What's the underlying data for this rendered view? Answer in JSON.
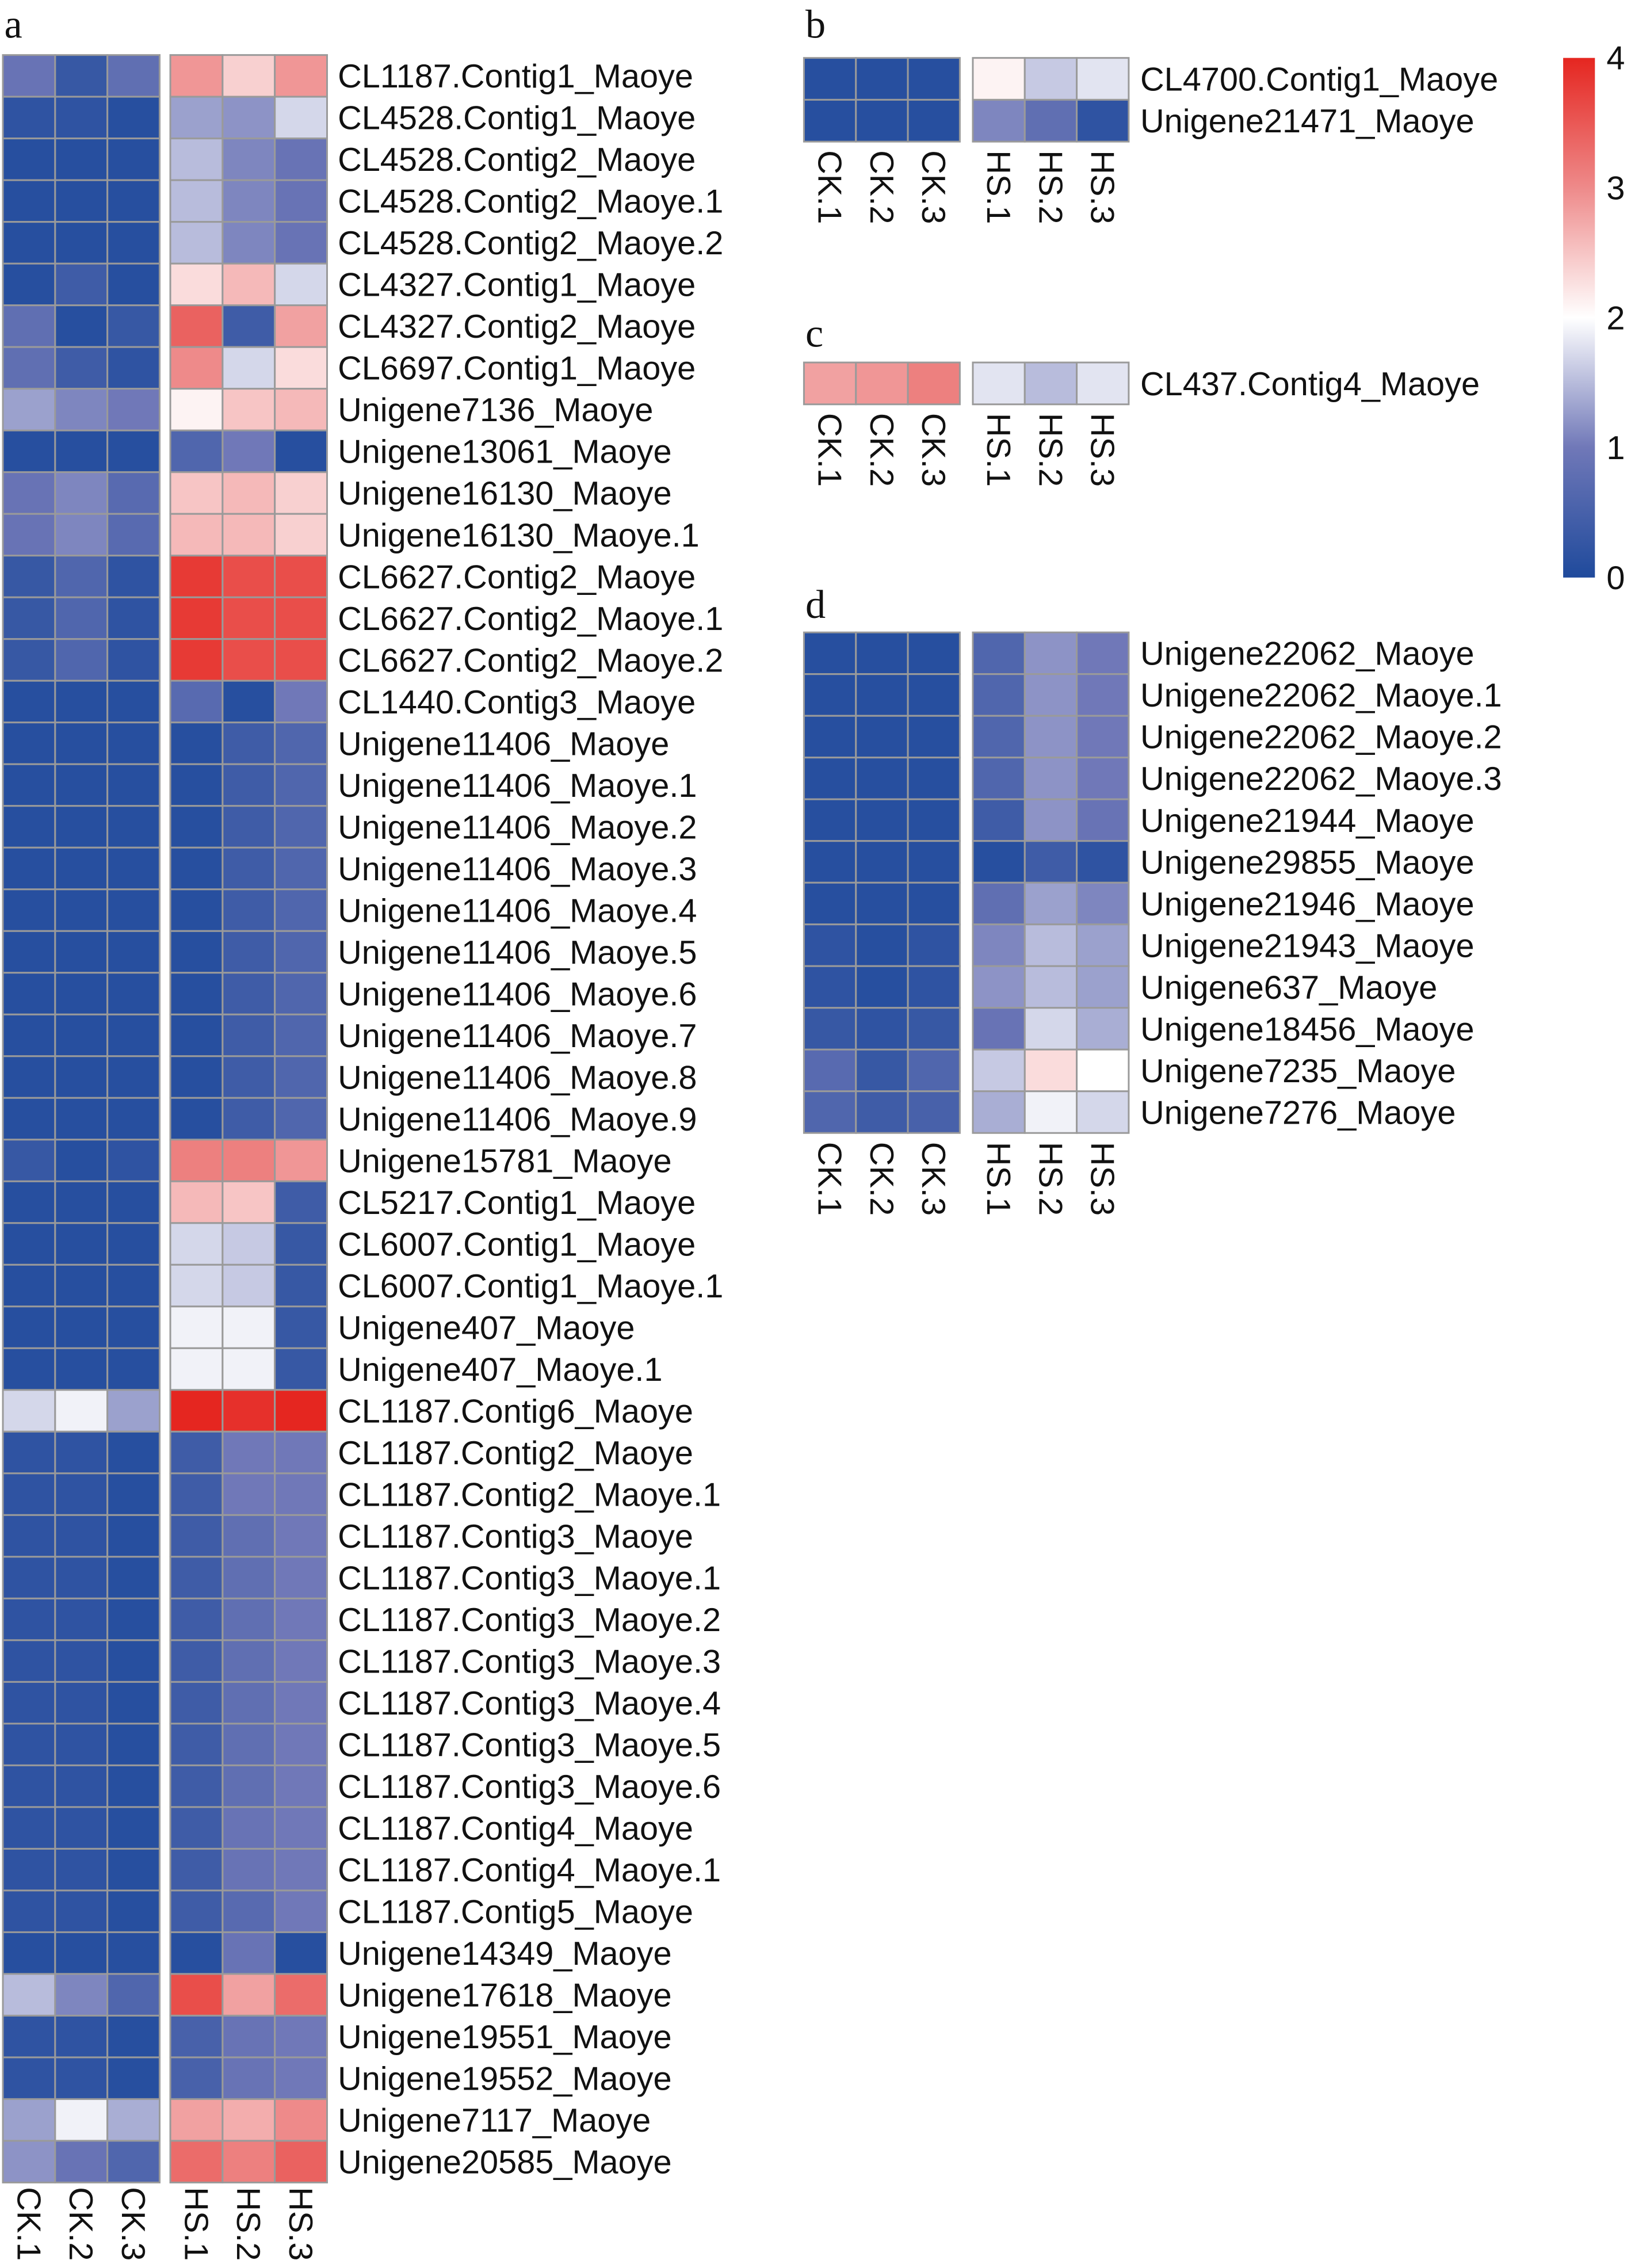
{
  "chart_data": {
    "type": "heatmap",
    "columns": [
      "CK.1",
      "CK.2",
      "CK.3",
      "HS.1",
      "HS.2",
      "HS.3"
    ],
    "colorbar": {
      "min": 0,
      "max": 4,
      "ticks": [
        "0",
        "1",
        "2",
        "3",
        "4"
      ],
      "colors": {
        "0": "#1f4a9c",
        "1": "#7078b8",
        "2": "#ffffff",
        "3": "#ee8a8a",
        "4": "#e52620"
      }
    },
    "panels": [
      {
        "letter": "a",
        "rows": [
          {
            "label": "CL1187.Contig1_Maoye",
            "values": [
              0.9,
              0.3,
              0.8,
              2.9,
              2.4,
              2.9
            ]
          },
          {
            "label": "CL4528.Contig1_Maoye",
            "values": [
              0.2,
              0.2,
              0.1,
              1.3,
              1.2,
              1.7
            ]
          },
          {
            "label": "CL4528.Contig2_Maoye",
            "values": [
              0.1,
              0.1,
              0.1,
              1.5,
              1.1,
              0.9
            ]
          },
          {
            "label": "CL4528.Contig2_Maoye.1",
            "values": [
              0.1,
              0.1,
              0.1,
              1.5,
              1.1,
              0.9
            ]
          },
          {
            "label": "CL4528.Contig2_Maoye.2",
            "values": [
              0.1,
              0.1,
              0.1,
              1.5,
              1.1,
              0.9
            ]
          },
          {
            "label": "CL4327.Contig1_Maoye",
            "values": [
              0.1,
              0.4,
              0.1,
              2.3,
              2.6,
              1.7
            ]
          },
          {
            "label": "CL4327.Contig2_Maoye",
            "values": [
              0.8,
              0.1,
              0.3,
              3.4,
              0.4,
              2.8
            ]
          },
          {
            "label": "CL6697.Contig1_Maoye",
            "values": [
              0.8,
              0.4,
              0.2,
              3.0,
              1.7,
              2.3
            ]
          },
          {
            "label": "Unigene7136_Maoye",
            "values": [
              1.3,
              1.1,
              1.0,
              2.1,
              2.5,
              2.6
            ]
          },
          {
            "label": "Unigene13061_Maoye",
            "values": [
              0.1,
              0.1,
              0.1,
              0.6,
              1.0,
              0.1
            ]
          },
          {
            "label": "Unigene16130_Maoye",
            "values": [
              0.9,
              1.1,
              0.7,
              2.5,
              2.6,
              2.4
            ]
          },
          {
            "label": "Unigene16130_Maoye.1",
            "values": [
              0.9,
              1.1,
              0.7,
              2.6,
              2.6,
              2.4
            ]
          },
          {
            "label": "CL6627.Contig2_Maoye",
            "values": [
              0.3,
              0.6,
              0.2,
              3.8,
              3.6,
              3.6
            ]
          },
          {
            "label": "CL6627.Contig2_Maoye.1",
            "values": [
              0.3,
              0.6,
              0.2,
              3.8,
              3.6,
              3.6
            ]
          },
          {
            "label": "CL6627.Contig2_Maoye.2",
            "values": [
              0.3,
              0.6,
              0.2,
              3.8,
              3.6,
              3.6
            ]
          },
          {
            "label": "CL1440.Contig3_Maoye",
            "values": [
              0.1,
              0.1,
              0.1,
              0.7,
              0.1,
              1.0
            ]
          },
          {
            "label": "Unigene11406_Maoye",
            "values": [
              0.1,
              0.1,
              0.1,
              0.1,
              0.4,
              0.6
            ]
          },
          {
            "label": "Unigene11406_Maoye.1",
            "values": [
              0.1,
              0.1,
              0.1,
              0.1,
              0.4,
              0.6
            ]
          },
          {
            "label": "Unigene11406_Maoye.2",
            "values": [
              0.1,
              0.1,
              0.1,
              0.1,
              0.4,
              0.6
            ]
          },
          {
            "label": "Unigene11406_Maoye.3",
            "values": [
              0.1,
              0.1,
              0.1,
              0.1,
              0.4,
              0.6
            ]
          },
          {
            "label": "Unigene11406_Maoye.4",
            "values": [
              0.1,
              0.1,
              0.1,
              0.1,
              0.4,
              0.6
            ]
          },
          {
            "label": "Unigene11406_Maoye.5",
            "values": [
              0.1,
              0.1,
              0.1,
              0.1,
              0.4,
              0.6
            ]
          },
          {
            "label": "Unigene11406_Maoye.6",
            "values": [
              0.1,
              0.1,
              0.1,
              0.1,
              0.4,
              0.6
            ]
          },
          {
            "label": "Unigene11406_Maoye.7",
            "values": [
              0.1,
              0.1,
              0.1,
              0.1,
              0.4,
              0.6
            ]
          },
          {
            "label": "Unigene11406_Maoye.8",
            "values": [
              0.1,
              0.1,
              0.1,
              0.1,
              0.4,
              0.6
            ]
          },
          {
            "label": "Unigene11406_Maoye.9",
            "values": [
              0.1,
              0.1,
              0.1,
              0.1,
              0.4,
              0.6
            ]
          },
          {
            "label": "Unigene15781_Maoye",
            "values": [
              0.3,
              0.1,
              0.2,
              3.1,
              3.1,
              2.9
            ]
          },
          {
            "label": "CL5217.Contig1_Maoye",
            "values": [
              0.1,
              0.1,
              0.1,
              2.6,
              2.5,
              0.4
            ]
          },
          {
            "label": "CL6007.Contig1_Maoye",
            "values": [
              0.1,
              0.1,
              0.1,
              1.7,
              1.6,
              0.3
            ]
          },
          {
            "label": "CL6007.Contig1_Maoye.1",
            "values": [
              0.1,
              0.1,
              0.1,
              1.7,
              1.6,
              0.3
            ]
          },
          {
            "label": "Unigene407_Maoye",
            "values": [
              0.1,
              0.1,
              0.1,
              1.9,
              1.9,
              0.3
            ]
          },
          {
            "label": "Unigene407_Maoye.1",
            "values": [
              0.1,
              0.1,
              0.1,
              1.9,
              1.9,
              0.3
            ]
          },
          {
            "label": "CL1187.Contig6_Maoye",
            "values": [
              1.7,
              1.9,
              1.3,
              4.0,
              3.9,
              4.0
            ]
          },
          {
            "label": "CL1187.Contig2_Maoye",
            "values": [
              0.2,
              0.2,
              0.1,
              0.4,
              1.0,
              1.0
            ]
          },
          {
            "label": "CL1187.Contig2_Maoye.1",
            "values": [
              0.2,
              0.2,
              0.1,
              0.4,
              1.0,
              1.0
            ]
          },
          {
            "label": "CL1187.Contig3_Maoye",
            "values": [
              0.2,
              0.2,
              0.1,
              0.4,
              0.8,
              1.0
            ]
          },
          {
            "label": "CL1187.Contig3_Maoye.1",
            "values": [
              0.2,
              0.2,
              0.1,
              0.4,
              0.8,
              1.0
            ]
          },
          {
            "label": "CL1187.Contig3_Maoye.2",
            "values": [
              0.2,
              0.2,
              0.1,
              0.4,
              0.8,
              1.0
            ]
          },
          {
            "label": "CL1187.Contig3_Maoye.3",
            "values": [
              0.2,
              0.2,
              0.1,
              0.4,
              0.8,
              1.0
            ]
          },
          {
            "label": "CL1187.Contig3_Maoye.4",
            "values": [
              0.2,
              0.2,
              0.1,
              0.4,
              0.8,
              1.0
            ]
          },
          {
            "label": "CL1187.Contig3_Maoye.5",
            "values": [
              0.2,
              0.2,
              0.1,
              0.4,
              0.8,
              1.0
            ]
          },
          {
            "label": "CL1187.Contig3_Maoye.6",
            "values": [
              0.2,
              0.2,
              0.1,
              0.4,
              0.8,
              1.0
            ]
          },
          {
            "label": "CL1187.Contig4_Maoye",
            "values": [
              0.2,
              0.2,
              0.1,
              0.4,
              0.9,
              1.0
            ]
          },
          {
            "label": "CL1187.Contig4_Maoye.1",
            "values": [
              0.2,
              0.2,
              0.1,
              0.4,
              0.9,
              1.0
            ]
          },
          {
            "label": "CL1187.Contig5_Maoye",
            "values": [
              0.2,
              0.2,
              0.1,
              0.4,
              0.7,
              1.0
            ]
          },
          {
            "label": "Unigene14349_Maoye",
            "values": [
              0.1,
              0.1,
              0.1,
              0.1,
              0.9,
              0.1
            ]
          },
          {
            "label": "Unigene17618_Maoye",
            "values": [
              1.5,
              1.1,
              0.6,
              3.6,
              2.8,
              3.3
            ]
          },
          {
            "label": "Unigene19551_Maoye",
            "values": [
              0.2,
              0.2,
              0.1,
              0.5,
              0.9,
              1.0
            ]
          },
          {
            "label": "Unigene19552_Maoye",
            "values": [
              0.2,
              0.2,
              0.1,
              0.5,
              0.9,
              1.0
            ]
          },
          {
            "label": "Unigene7117_Maoye",
            "values": [
              1.3,
              1.9,
              1.4,
              2.8,
              2.7,
              3.0
            ]
          },
          {
            "label": "Unigene20585_Maoye",
            "values": [
              1.2,
              0.9,
              0.6,
              3.3,
              3.1,
              3.4
            ]
          }
        ]
      },
      {
        "letter": "b",
        "rows": [
          {
            "label": "CL4700.Contig1_Maoye",
            "values": [
              0.1,
              0.1,
              0.1,
              2.1,
              1.6,
              1.8
            ]
          },
          {
            "label": "Unigene21471_Maoye",
            "values": [
              0.1,
              0.1,
              0.1,
              1.1,
              0.8,
              0.2
            ]
          }
        ]
      },
      {
        "letter": "c",
        "rows": [
          {
            "label": "CL437.Contig4_Maoye",
            "values": [
              2.8,
              2.9,
              3.1,
              1.8,
              1.5,
              1.8
            ]
          }
        ]
      },
      {
        "letter": "d",
        "rows": [
          {
            "label": "Unigene22062_Maoye",
            "values": [
              0.1,
              0.1,
              0.1,
              0.6,
              1.2,
              1.0
            ]
          },
          {
            "label": "Unigene22062_Maoye.1",
            "values": [
              0.1,
              0.1,
              0.1,
              0.6,
              1.2,
              1.0
            ]
          },
          {
            "label": "Unigene22062_Maoye.2",
            "values": [
              0.1,
              0.1,
              0.1,
              0.6,
              1.2,
              1.0
            ]
          },
          {
            "label": "Unigene22062_Maoye.3",
            "values": [
              0.1,
              0.1,
              0.1,
              0.6,
              1.2,
              1.0
            ]
          },
          {
            "label": "Unigene21944_Maoye",
            "values": [
              0.1,
              0.1,
              0.1,
              0.4,
              1.2,
              0.9
            ]
          },
          {
            "label": "Unigene29855_Maoye",
            "values": [
              0.1,
              0.1,
              0.1,
              0.1,
              0.4,
              0.2
            ]
          },
          {
            "label": "Unigene21946_Maoye",
            "values": [
              0.1,
              0.1,
              0.1,
              0.8,
              1.3,
              1.1
            ]
          },
          {
            "label": "Unigene21943_Maoye",
            "values": [
              0.2,
              0.1,
              0.2,
              1.1,
              1.5,
              1.3
            ]
          },
          {
            "label": "Unigene637_Maoye",
            "values": [
              0.2,
              0.1,
              0.2,
              1.2,
              1.5,
              1.3
            ]
          },
          {
            "label": "Unigene18456_Maoye",
            "values": [
              0.3,
              0.2,
              0.3,
              0.9,
              1.7,
              1.4
            ]
          },
          {
            "label": "Unigene7235_Maoye",
            "values": [
              0.7,
              0.3,
              0.6,
              1.6,
              2.3,
              2.0
            ]
          },
          {
            "label": "Unigene7276_Maoye",
            "values": [
              0.6,
              0.4,
              0.5,
              1.4,
              1.9,
              1.7
            ]
          }
        ]
      }
    ]
  }
}
